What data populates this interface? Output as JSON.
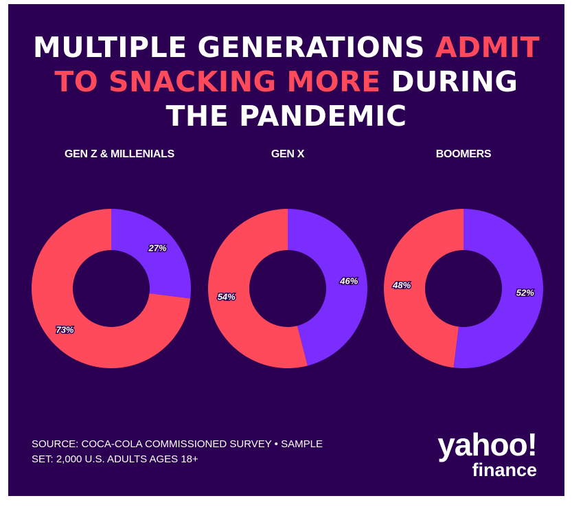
{
  "title": {
    "part1": "MULTIPLE GENERATIONS ",
    "highlight1": "ADMIT",
    "highlight2": "TO SNACKING MORE",
    "part2": " DURING",
    "part3": "THE PANDEMIC"
  },
  "colors": {
    "background": "#2b0052",
    "more": "#ff4a5b",
    "other": "#7b2cff",
    "highlight": "#ff4a5b"
  },
  "chart_data": [
    {
      "type": "pie",
      "title": "GEN Z & MILLENIALS",
      "slices": [
        {
          "color": "#7b2cff",
          "value": 27,
          "label": "27%"
        },
        {
          "color": "#ff4a5b",
          "value": 73,
          "label": "73%"
        }
      ]
    },
    {
      "type": "pie",
      "title": "GEN X",
      "slices": [
        {
          "color": "#7b2cff",
          "value": 46,
          "label": "46%"
        },
        {
          "color": "#ff4a5b",
          "value": 54,
          "label": "54%"
        }
      ]
    },
    {
      "type": "pie",
      "title": "BOOMERS",
      "slices": [
        {
          "color": "#7b2cff",
          "value": 52,
          "label": "52%"
        },
        {
          "color": "#ff4a5b",
          "value": 48,
          "label": "48%"
        }
      ]
    }
  ],
  "source": {
    "line1": "SOURCE: COCA-COLA COMMISSIONED SURVEY • SAMPLE",
    "line2": "SET: 2,000 U.S. ADULTS AGES 18+"
  },
  "logo": {
    "yahoo": "yahoo!",
    "finance": "finance"
  }
}
